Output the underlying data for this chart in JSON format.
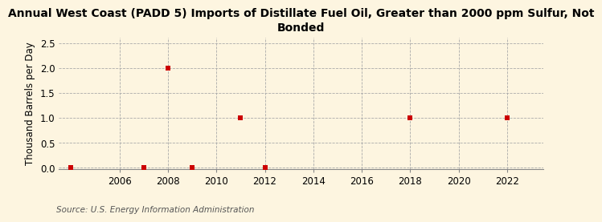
{
  "title": "Annual West Coast (PADD 5) Imports of Distillate Fuel Oil, Greater than 2000 ppm Sulfur, Not\nBonded",
  "ylabel": "Thousand Barrels per Day",
  "source": "Source: U.S. Energy Information Administration",
  "background_color": "#fdf5e0",
  "plot_bg_color": "#fdf5e0",
  "data_points": [
    {
      "year": 2004,
      "value": 0.0
    },
    {
      "year": 2007,
      "value": 0.0
    },
    {
      "year": 2008,
      "value": 2.0
    },
    {
      "year": 2009,
      "value": 0.0
    },
    {
      "year": 2011,
      "value": 1.0
    },
    {
      "year": 2012,
      "value": 0.0
    },
    {
      "year": 2018,
      "value": 1.0
    },
    {
      "year": 2022,
      "value": 1.0
    }
  ],
  "xlim": [
    2003.5,
    2023.5
  ],
  "ylim": [
    -0.02,
    2.6
  ],
  "xticks": [
    2006,
    2008,
    2010,
    2012,
    2014,
    2016,
    2018,
    2020,
    2022
  ],
  "yticks": [
    0.0,
    0.5,
    1.0,
    1.5,
    2.0,
    2.5
  ],
  "marker_color": "#cc0000",
  "marker_size": 18,
  "grid_color": "#aaaaaa",
  "title_fontsize": 10,
  "axis_label_fontsize": 8.5,
  "tick_fontsize": 8.5,
  "source_fontsize": 7.5
}
